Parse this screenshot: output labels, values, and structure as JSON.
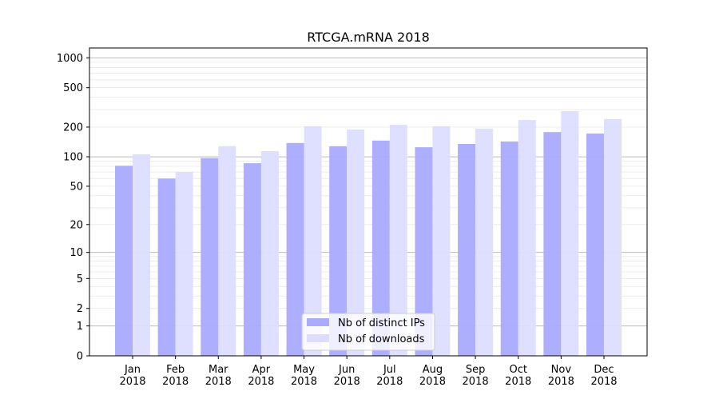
{
  "chart_data": {
    "type": "bar",
    "title": "RTCGA.mRNA 2018",
    "xlabel": "",
    "ylabel": "",
    "yscale": "symlog (log10(1+y))",
    "ylim": [
      0,
      1270
    ],
    "yticks": [
      0,
      1,
      2,
      5,
      10,
      20,
      50,
      100,
      200,
      500,
      1000
    ],
    "categories": [
      "Jan\n2018",
      "Feb\n2018",
      "Mar\n2018",
      "Apr\n2018",
      "May\n2018",
      "Jun\n2018",
      "Jul\n2018",
      "Aug\n2018",
      "Sep\n2018",
      "Oct\n2018",
      "Nov\n2018",
      "Dec\n2018"
    ],
    "series": [
      {
        "name": "Nb of distinct IPs",
        "color": "#aaaaff",
        "values": [
          81,
          60,
          97,
          86,
          138,
          128,
          146,
          125,
          135,
          143,
          178,
          172
        ]
      },
      {
        "name": "Nb of downloads",
        "color": "#ddddff",
        "values": [
          106,
          70,
          128,
          114,
          204,
          189,
          211,
          204,
          193,
          236,
          290,
          241
        ]
      }
    ],
    "grid": true,
    "legend": "bottom-center"
  }
}
